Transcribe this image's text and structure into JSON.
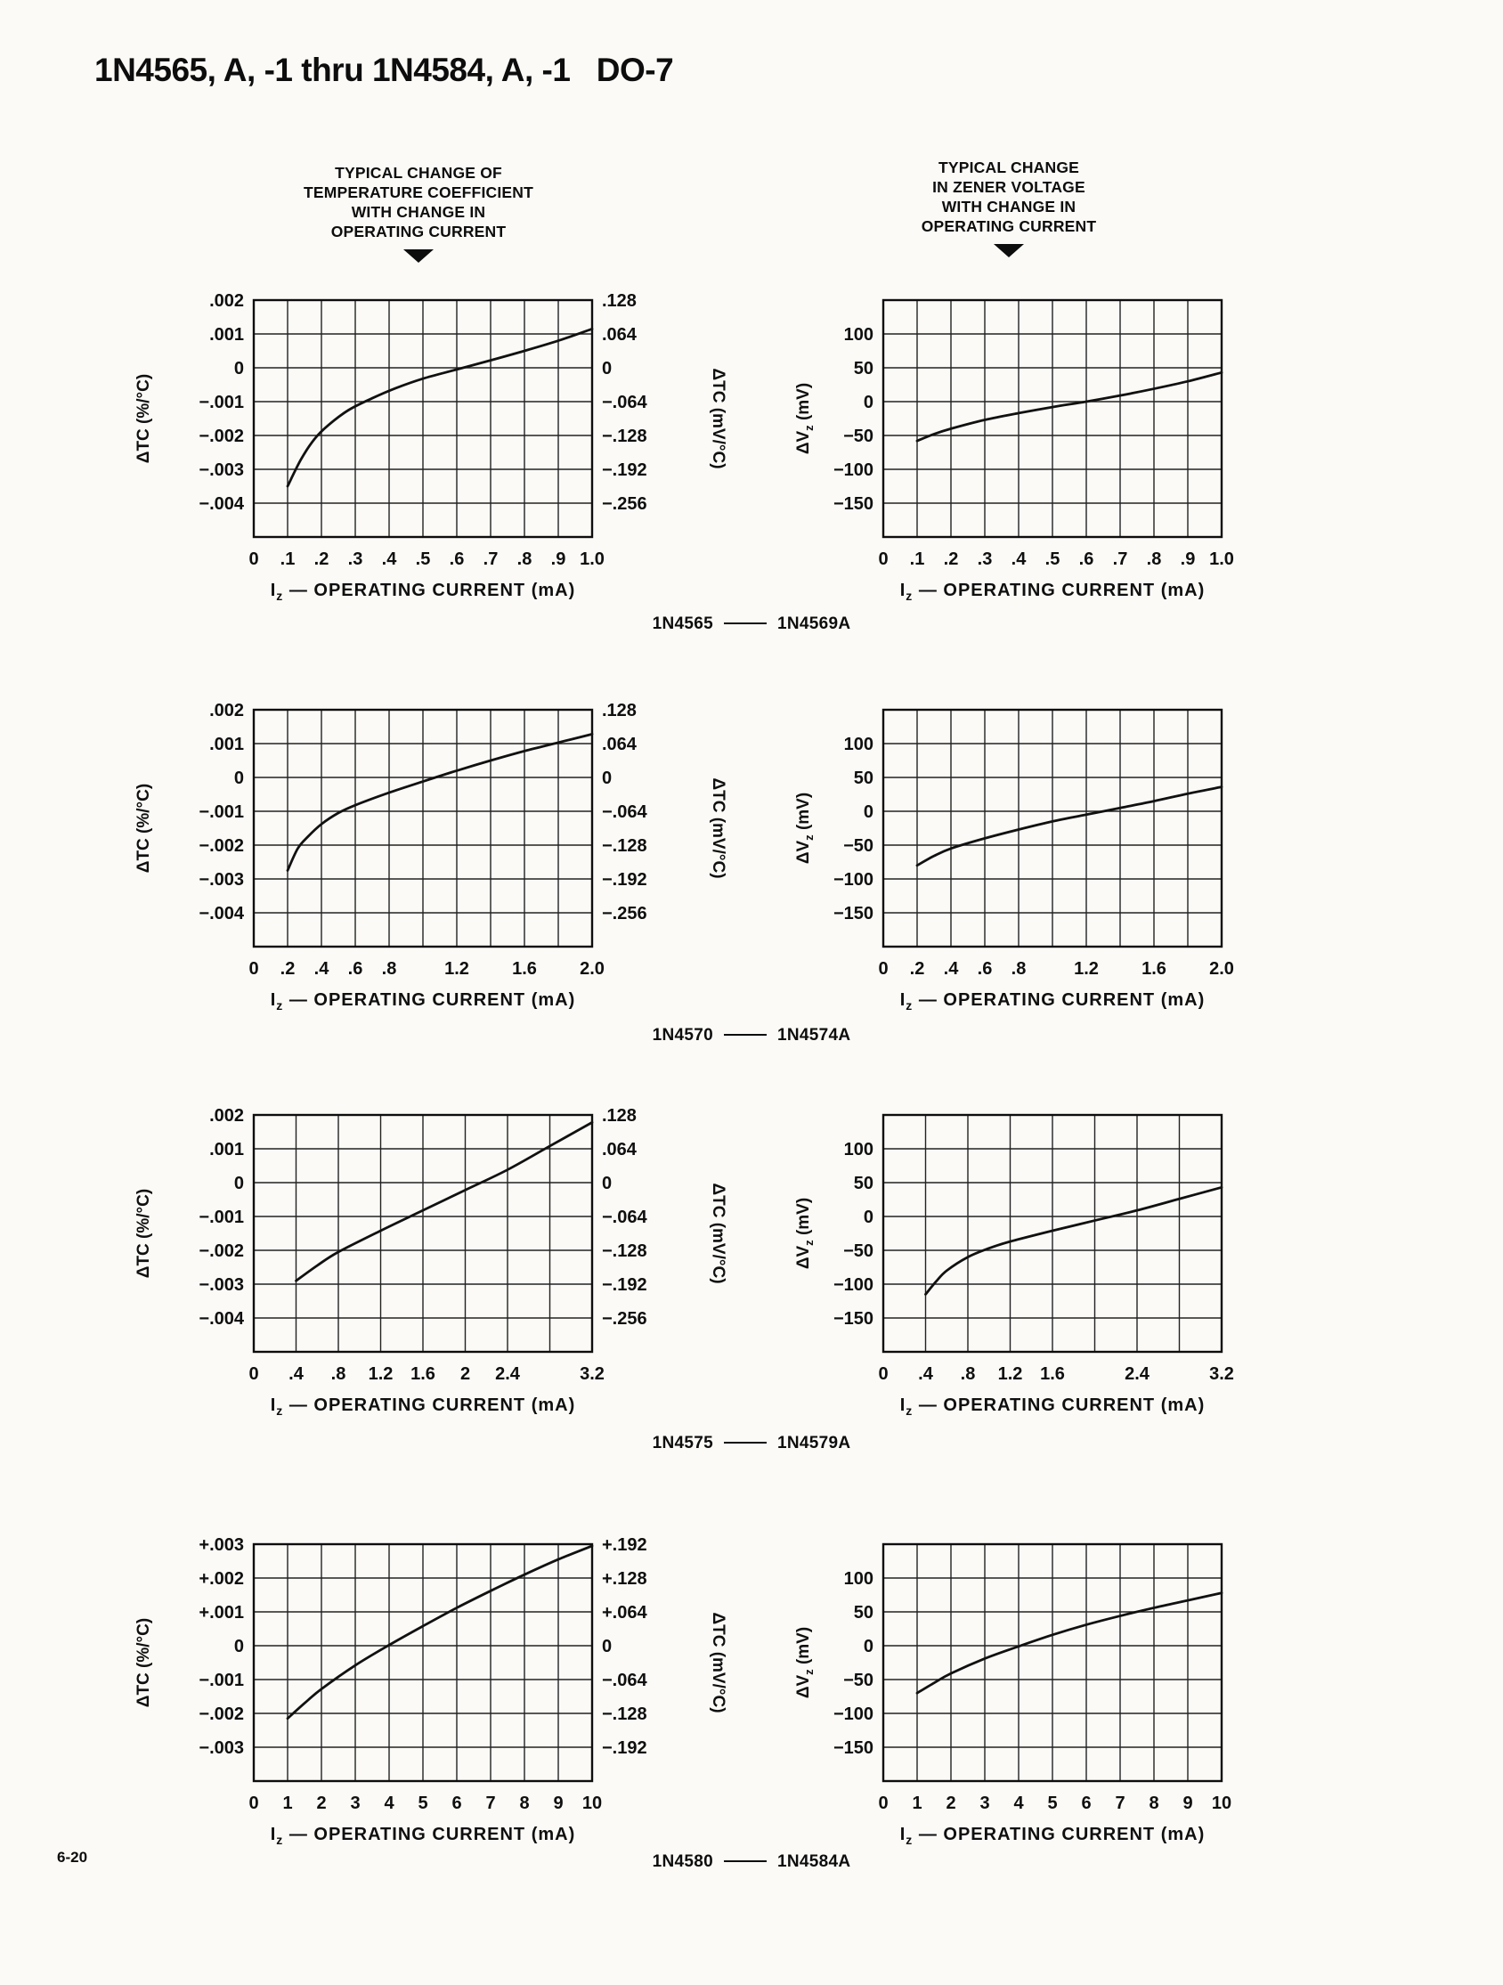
{
  "page": {
    "title": "1N4565, A, -1 thru 1N4584, A, -1   DO-7",
    "page_number": "6-20"
  },
  "headers": {
    "left": [
      "TYPICAL CHANGE OF",
      "TEMPERATURE COEFFICIENT",
      "WITH CHANGE IN",
      "OPERATING CURRENT"
    ],
    "right": [
      "TYPICAL CHANGE",
      "IN ZENER VOLTAGE",
      "WITH CHANGE IN",
      "OPERATING CURRENT"
    ]
  },
  "captions": [
    {
      "left": "1N4565",
      "right": "1N4569A"
    },
    {
      "left": "1N4570",
      "right": "1N4574A"
    },
    {
      "left": "1N4575",
      "right": "1N4579A"
    },
    {
      "left": "1N4580",
      "right": "1N4584A"
    }
  ],
  "chart_data": [
    {
      "type": "line",
      "kind": "tc",
      "series": "1N4565 - 1N4569A",
      "xlabel": "Iz — OPERATING CURRENT (mA)",
      "ylabel_left": "ΔTC (%/°C)",
      "ylabel_right": "ΔTC (mV/°C)",
      "xlim": [
        0,
        1.0
      ],
      "ylim": [
        -0.005,
        0.002
      ],
      "grid": true,
      "x_ticks": [
        {
          "v": 0,
          "l": "0"
        },
        {
          "v": 0.1,
          "l": ".1"
        },
        {
          "v": 0.2,
          "l": ".2"
        },
        {
          "v": 0.3,
          "l": ".3"
        },
        {
          "v": 0.4,
          "l": ".4"
        },
        {
          "v": 0.5,
          "l": ".5"
        },
        {
          "v": 0.6,
          "l": ".6"
        },
        {
          "v": 0.7,
          "l": ".7"
        },
        {
          "v": 0.8,
          "l": ".8"
        },
        {
          "v": 0.9,
          "l": ".9"
        },
        {
          "v": 1.0,
          "l": "1.0"
        }
      ],
      "y_ticks": [
        {
          "v": 0.002,
          "l": ".002",
          "r": ".128"
        },
        {
          "v": 0.001,
          "l": ".001",
          "r": ".064"
        },
        {
          "v": 0,
          "l": "0",
          "r": "0"
        },
        {
          "v": -0.001,
          "l": "−.001",
          "r": "−.064"
        },
        {
          "v": -0.002,
          "l": "−.002",
          "r": "−.128"
        },
        {
          "v": -0.003,
          "l": "−.003",
          "r": "−.192"
        },
        {
          "v": -0.004,
          "l": "−.004",
          "r": "−.256"
        }
      ],
      "curve": [
        [
          0.1,
          -0.0035
        ],
        [
          0.14,
          -0.0027
        ],
        [
          0.18,
          -0.0021
        ],
        [
          0.22,
          -0.0017
        ],
        [
          0.28,
          -0.00125
        ],
        [
          0.35,
          -0.0009
        ],
        [
          0.42,
          -0.0006
        ],
        [
          0.5,
          -0.00032
        ],
        [
          0.6,
          -5e-05
        ],
        [
          0.7,
          0.00022
        ],
        [
          0.8,
          0.0005
        ],
        [
          0.9,
          0.0008
        ],
        [
          1.0,
          0.00115
        ]
      ]
    },
    {
      "type": "line",
      "kind": "vz",
      "series": "1N4565 - 1N4569A",
      "xlabel": "Iz — OPERATING CURRENT (mA)",
      "ylabel_left": "ΔVz (mV)",
      "xlim": [
        0,
        1.0
      ],
      "ylim": [
        -200,
        150
      ],
      "grid": true,
      "x_ticks": [
        {
          "v": 0,
          "l": "0"
        },
        {
          "v": 0.1,
          "l": ".1"
        },
        {
          "v": 0.2,
          "l": ".2"
        },
        {
          "v": 0.3,
          "l": ".3"
        },
        {
          "v": 0.4,
          "l": ".4"
        },
        {
          "v": 0.5,
          "l": ".5"
        },
        {
          "v": 0.6,
          "l": ".6"
        },
        {
          "v": 0.7,
          "l": ".7"
        },
        {
          "v": 0.8,
          "l": ".8"
        },
        {
          "v": 0.9,
          "l": ".9"
        },
        {
          "v": 1.0,
          "l": "1.0"
        }
      ],
      "y_ticks": [
        {
          "v": 100,
          "l": "100"
        },
        {
          "v": 50,
          "l": "50"
        },
        {
          "v": 0,
          "l": "0"
        },
        {
          "v": -50,
          "l": "−50"
        },
        {
          "v": -100,
          "l": "−100"
        },
        {
          "v": -150,
          "l": "−150"
        }
      ],
      "curve": [
        [
          0.1,
          -58
        ],
        [
          0.15,
          -48
        ],
        [
          0.2,
          -40
        ],
        [
          0.3,
          -27
        ],
        [
          0.4,
          -17
        ],
        [
          0.5,
          -8
        ],
        [
          0.6,
          0
        ],
        [
          0.7,
          9
        ],
        [
          0.8,
          19
        ],
        [
          0.9,
          30
        ],
        [
          1.0,
          43
        ]
      ]
    },
    {
      "type": "line",
      "kind": "tc",
      "series": "1N4570 - 1N4574A",
      "xlabel": "Iz — OPERATING CURRENT (mA)",
      "ylabel_left": "ΔTC (%/°C)",
      "ylabel_right": "ΔTC (mV/°C)",
      "xlim": [
        0,
        2.0
      ],
      "ylim": [
        -0.005,
        0.002
      ],
      "grid": true,
      "x_ticks": [
        {
          "v": 0,
          "l": "0"
        },
        {
          "v": 0.2,
          "l": ".2"
        },
        {
          "v": 0.4,
          "l": ".4"
        },
        {
          "v": 0.6,
          "l": ".6"
        },
        {
          "v": 0.8,
          "l": ".8"
        },
        {
          "v": 1.0,
          "l": ""
        },
        {
          "v": 1.2,
          "l": "1.2"
        },
        {
          "v": 1.4,
          "l": ""
        },
        {
          "v": 1.6,
          "l": "1.6"
        },
        {
          "v": 1.8,
          "l": ""
        },
        {
          "v": 2.0,
          "l": "2.0"
        }
      ],
      "y_ticks": [
        {
          "v": 0.002,
          "l": ".002",
          "r": ".128"
        },
        {
          "v": 0.001,
          "l": ".001",
          "r": ".064"
        },
        {
          "v": 0,
          "l": "0",
          "r": "0"
        },
        {
          "v": -0.001,
          "l": "−.001",
          "r": "−.064"
        },
        {
          "v": -0.002,
          "l": "−.002",
          "r": "−.128"
        },
        {
          "v": -0.003,
          "l": "−.003",
          "r": "−.192"
        },
        {
          "v": -0.004,
          "l": "−.004",
          "r": "−.256"
        }
      ],
      "curve": [
        [
          0.2,
          -0.00275
        ],
        [
          0.26,
          -0.0021
        ],
        [
          0.32,
          -0.00175
        ],
        [
          0.4,
          -0.00138
        ],
        [
          0.5,
          -0.00105
        ],
        [
          0.6,
          -0.00082
        ],
        [
          0.8,
          -0.00045
        ],
        [
          1.0,
          -0.00012
        ],
        [
          1.2,
          0.0002
        ],
        [
          1.4,
          0.0005
        ],
        [
          1.6,
          0.00078
        ],
        [
          1.8,
          0.00103
        ],
        [
          2.0,
          0.00128
        ]
      ]
    },
    {
      "type": "line",
      "kind": "vz",
      "series": "1N4570 - 1N4574A",
      "xlabel": "Iz — OPERATING CURRENT (mA)",
      "ylabel_left": "ΔVz (mV)",
      "xlim": [
        0,
        2.0
      ],
      "ylim": [
        -200,
        150
      ],
      "grid": true,
      "x_ticks": [
        {
          "v": 0,
          "l": "0"
        },
        {
          "v": 0.2,
          "l": ".2"
        },
        {
          "v": 0.4,
          "l": ".4"
        },
        {
          "v": 0.6,
          "l": ".6"
        },
        {
          "v": 0.8,
          "l": ".8"
        },
        {
          "v": 1.0,
          "l": ""
        },
        {
          "v": 1.2,
          "l": "1.2"
        },
        {
          "v": 1.4,
          "l": ""
        },
        {
          "v": 1.6,
          "l": "1.6"
        },
        {
          "v": 1.8,
          "l": ""
        },
        {
          "v": 2.0,
          "l": "2.0"
        }
      ],
      "y_ticks": [
        {
          "v": 100,
          "l": "100"
        },
        {
          "v": 50,
          "l": "50"
        },
        {
          "v": 0,
          "l": "0"
        },
        {
          "v": -50,
          "l": "−50"
        },
        {
          "v": -100,
          "l": "−100"
        },
        {
          "v": -150,
          "l": "−150"
        }
      ],
      "curve": [
        [
          0.2,
          -80
        ],
        [
          0.3,
          -66
        ],
        [
          0.4,
          -55
        ],
        [
          0.6,
          -40
        ],
        [
          0.8,
          -27
        ],
        [
          1.0,
          -15
        ],
        [
          1.2,
          -5
        ],
        [
          1.4,
          5
        ],
        [
          1.6,
          15
        ],
        [
          1.8,
          26
        ],
        [
          2.0,
          36
        ]
      ]
    },
    {
      "type": "line",
      "kind": "tc",
      "series": "1N4575 - 1N4579A",
      "xlabel": "Iz — OPERATING CURRENT (mA)",
      "ylabel_left": "ΔTC (%/°C)",
      "ylabel_right": "ΔTC (mV/°C)",
      "xlim": [
        0,
        3.2
      ],
      "ylim": [
        -0.005,
        0.002
      ],
      "grid": true,
      "x_ticks": [
        {
          "v": 0,
          "l": "0"
        },
        {
          "v": 0.4,
          "l": ".4"
        },
        {
          "v": 0.8,
          "l": ".8"
        },
        {
          "v": 1.2,
          "l": "1.2"
        },
        {
          "v": 1.6,
          "l": "1.6"
        },
        {
          "v": 2.0,
          "l": "2"
        },
        {
          "v": 2.4,
          "l": "2.4"
        },
        {
          "v": 2.8,
          "l": ""
        },
        {
          "v": 3.2,
          "l": "3.2"
        }
      ],
      "y_ticks": [
        {
          "v": 0.002,
          "l": ".002",
          "r": ".128"
        },
        {
          "v": 0.001,
          "l": ".001",
          "r": ".064"
        },
        {
          "v": 0,
          "l": "0",
          "r": "0"
        },
        {
          "v": -0.001,
          "l": "−.001",
          "r": "−.064"
        },
        {
          "v": -0.002,
          "l": "−.002",
          "r": "−.128"
        },
        {
          "v": -0.003,
          "l": "−.003",
          "r": "−.192"
        },
        {
          "v": -0.004,
          "l": "−.004",
          "r": "−.256"
        }
      ],
      "curve": [
        [
          0.4,
          -0.0029
        ],
        [
          0.6,
          -0.00245
        ],
        [
          0.8,
          -0.00205
        ],
        [
          1.2,
          -0.00142
        ],
        [
          1.6,
          -0.00082
        ],
        [
          2.0,
          -0.00022
        ],
        [
          2.4,
          0.00038
        ],
        [
          2.8,
          0.00108
        ],
        [
          3.2,
          0.00178
        ]
      ]
    },
    {
      "type": "line",
      "kind": "vz",
      "series": "1N4575 - 1N4579A",
      "xlabel": "Iz — OPERATING CURRENT (mA)",
      "ylabel_left": "ΔVz (mV)",
      "xlim": [
        0,
        3.2
      ],
      "ylim": [
        -200,
        150
      ],
      "grid": true,
      "x_ticks": [
        {
          "v": 0,
          "l": "0"
        },
        {
          "v": 0.4,
          "l": ".4"
        },
        {
          "v": 0.8,
          "l": ".8"
        },
        {
          "v": 1.2,
          "l": "1.2"
        },
        {
          "v": 1.6,
          "l": "1.6"
        },
        {
          "v": 2.0,
          "l": ""
        },
        {
          "v": 2.4,
          "l": "2.4"
        },
        {
          "v": 2.8,
          "l": ""
        },
        {
          "v": 3.2,
          "l": "3.2"
        }
      ],
      "y_ticks": [
        {
          "v": 100,
          "l": "100"
        },
        {
          "v": 50,
          "l": "50"
        },
        {
          "v": 0,
          "l": "0"
        },
        {
          "v": -50,
          "l": "−50"
        },
        {
          "v": -100,
          "l": "−100"
        },
        {
          "v": -150,
          "l": "−150"
        }
      ],
      "curve": [
        [
          0.4,
          -115
        ],
        [
          0.5,
          -96
        ],
        [
          0.6,
          -80
        ],
        [
          0.8,
          -60
        ],
        [
          1.0,
          -47
        ],
        [
          1.2,
          -37
        ],
        [
          1.6,
          -21
        ],
        [
          2.0,
          -6
        ],
        [
          2.4,
          9
        ],
        [
          2.8,
          26
        ],
        [
          3.2,
          43
        ]
      ]
    },
    {
      "type": "line",
      "kind": "tc",
      "series": "1N4580 - 1N4584A",
      "xlabel": "Iz — OPERATING CURRENT (mA)",
      "ylabel_left": "ΔTC (%/°C)",
      "ylabel_right": "ΔTC (mV/°C)",
      "xlim": [
        0,
        10
      ],
      "ylim": [
        -0.004,
        0.003
      ],
      "grid": true,
      "x_ticks": [
        {
          "v": 0,
          "l": "0"
        },
        {
          "v": 1,
          "l": "1"
        },
        {
          "v": 2,
          "l": "2"
        },
        {
          "v": 3,
          "l": "3"
        },
        {
          "v": 4,
          "l": "4"
        },
        {
          "v": 5,
          "l": "5"
        },
        {
          "v": 6,
          "l": "6"
        },
        {
          "v": 7,
          "l": "7"
        },
        {
          "v": 8,
          "l": "8"
        },
        {
          "v": 9,
          "l": "9"
        },
        {
          "v": 10,
          "l": "10"
        }
      ],
      "y_ticks": [
        {
          "v": 0.003,
          "l": "+.003",
          "r": "+.192"
        },
        {
          "v": 0.002,
          "l": "+.002",
          "r": "+.128"
        },
        {
          "v": 0.001,
          "l": "+.001",
          "r": "+.064"
        },
        {
          "v": 0,
          "l": "0",
          "r": "0"
        },
        {
          "v": -0.001,
          "l": "−.001",
          "r": "−.064"
        },
        {
          "v": -0.002,
          "l": "−.002",
          "r": "−.128"
        },
        {
          "v": -0.003,
          "l": "−.003",
          "r": "−.192"
        }
      ],
      "curve": [
        [
          1,
          -0.00215
        ],
        [
          1.5,
          -0.0017
        ],
        [
          2,
          -0.00128
        ],
        [
          3,
          -0.00058
        ],
        [
          4,
          2e-05
        ],
        [
          5,
          0.00058
        ],
        [
          6,
          0.00112
        ],
        [
          7,
          0.00162
        ],
        [
          8,
          0.0021
        ],
        [
          9,
          0.00255
        ],
        [
          10,
          0.00295
        ]
      ]
    },
    {
      "type": "line",
      "kind": "vz",
      "series": "1N4580 - 1N4584A",
      "xlabel": "Iz — OPERATING CURRENT (mA)",
      "ylabel_left": "ΔVz (mV)",
      "xlim": [
        0,
        10
      ],
      "ylim": [
        -200,
        150
      ],
      "grid": true,
      "x_ticks": [
        {
          "v": 0,
          "l": "0"
        },
        {
          "v": 1,
          "l": "1"
        },
        {
          "v": 2,
          "l": "2"
        },
        {
          "v": 3,
          "l": "3"
        },
        {
          "v": 4,
          "l": "4"
        },
        {
          "v": 5,
          "l": "5"
        },
        {
          "v": 6,
          "l": "6"
        },
        {
          "v": 7,
          "l": "7"
        },
        {
          "v": 8,
          "l": "8"
        },
        {
          "v": 9,
          "l": "9"
        },
        {
          "v": 10,
          "l": "10"
        }
      ],
      "y_ticks": [
        {
          "v": 100,
          "l": "100"
        },
        {
          "v": 50,
          "l": "50"
        },
        {
          "v": 0,
          "l": "0"
        },
        {
          "v": -50,
          "l": "−50"
        },
        {
          "v": -100,
          "l": "−100"
        },
        {
          "v": -150,
          "l": "−150"
        }
      ],
      "curve": [
        [
          1,
          -70
        ],
        [
          1.5,
          -55
        ],
        [
          2,
          -41
        ],
        [
          3,
          -19
        ],
        [
          4,
          -1
        ],
        [
          5,
          16
        ],
        [
          6,
          31
        ],
        [
          7,
          44
        ],
        [
          8,
          56
        ],
        [
          9,
          67
        ],
        [
          10,
          78
        ]
      ]
    }
  ]
}
